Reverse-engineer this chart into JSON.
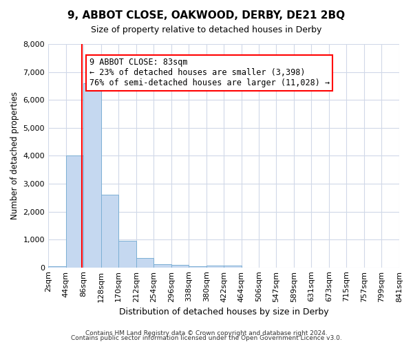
{
  "title": "9, ABBOT CLOSE, OAKWOOD, DERBY, DE21 2BQ",
  "subtitle": "Size of property relative to detached houses in Derby",
  "xlabel": "Distribution of detached houses by size in Derby",
  "ylabel": "Number of detached properties",
  "footer_line1": "Contains HM Land Registry data © Crown copyright and database right 2024.",
  "footer_line2": "Contains public sector information licensed under the Open Government Licence v3.0.",
  "bin_labels": [
    "2sqm",
    "44sqm",
    "86sqm",
    "128sqm",
    "170sqm",
    "212sqm",
    "254sqm",
    "296sqm",
    "338sqm",
    "380sqm",
    "422sqm",
    "464sqm",
    "506sqm",
    "547sqm",
    "589sqm",
    "631sqm",
    "673sqm",
    "715sqm",
    "757sqm",
    "799sqm",
    "841sqm"
  ],
  "bin_edges": [
    2,
    44,
    86,
    128,
    170,
    212,
    254,
    296,
    338,
    380,
    422,
    464,
    506,
    547,
    589,
    631,
    673,
    715,
    757,
    799,
    841
  ],
  "bar_values": [
    50,
    4000,
    6600,
    2600,
    950,
    325,
    120,
    100,
    50,
    70,
    55,
    0,
    0,
    0,
    0,
    0,
    0,
    0,
    0,
    0
  ],
  "bar_color": "#c5d8f0",
  "bar_edge_color": "#7bafd4",
  "property_size": 83,
  "property_line_color": "red",
  "annotation_title": "9 ABBOT CLOSE: 83sqm",
  "annotation_line1": "← 23% of detached houses are smaller (3,398)",
  "annotation_line2": "76% of semi-detached houses are larger (11,028) →",
  "annotation_box_color": "white",
  "annotation_box_edge_color": "red",
  "ylim": [
    0,
    8000
  ],
  "yticks": [
    0,
    1000,
    2000,
    3000,
    4000,
    5000,
    6000,
    7000,
    8000
  ],
  "background_color": "white",
  "grid_color": "#d0d8e8"
}
